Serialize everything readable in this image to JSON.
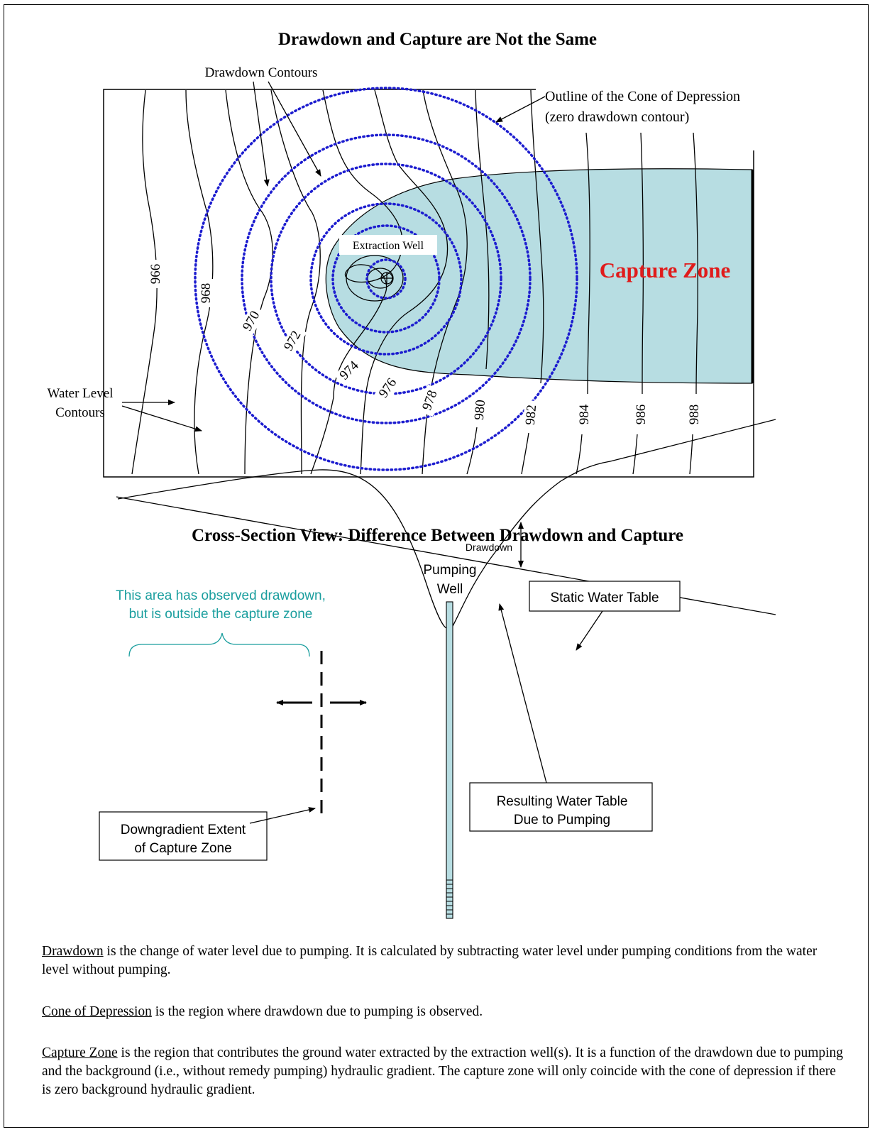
{
  "plan_view": {
    "title": "Drawdown and Capture are Not the Same",
    "labels": {
      "drawdown_contours": "Drawdown Contours",
      "cone_outline_line1": "Outline of the Cone of Depression",
      "cone_outline_line2": "(zero drawdown contour)",
      "extraction_well": "Extraction Well",
      "capture_zone": "Capture Zone",
      "water_level_line1": "Water Level",
      "water_level_line2": "Contours"
    },
    "contour_labels": [
      "966",
      "968",
      "970",
      "972",
      "974",
      "976",
      "978",
      "980",
      "982",
      "984",
      "986",
      "988"
    ]
  },
  "cross_section": {
    "title": "Cross-Section View: Difference Between Drawdown and Capture",
    "labels": {
      "pumping_well_line1": "Pumping",
      "pumping_well_line2": "Well",
      "static_water_table": "Static Water Table",
      "observed_line1": "This area has observed drawdown,",
      "observed_line2": "but is outside the capture zone",
      "drawdown": "Drawdown",
      "resulting_line1": "Resulting Water Table",
      "resulting_line2": "Due to Pumping",
      "downgradient_line1": "Downgradient Extent",
      "downgradient_line2": "of Capture Zone"
    }
  },
  "definitions": [
    {
      "term": "Drawdown",
      "text": " is the change of water level due to pumping.  It is calculated by subtracting water level under pumping conditions from the water level without pumping."
    },
    {
      "term": "Cone of Depression",
      "text": " is the region where drawdown due to pumping is observed."
    },
    {
      "term": "Capture Zone",
      "text": " is the region that contributes the ground water extracted by the extraction well(s).  It is a function of the drawdown due to pumping and the background (i.e., without remedy pumping) hydraulic gradient.  The capture zone will only coincide with the cone of depression if there is zero background hydraulic gradient."
    }
  ],
  "colors": {
    "capture_fill": "#b7dde2",
    "drawdown_dots": "#1c1ccf",
    "capture_label": "#e01b1b",
    "observed_text": "#1a9e9e"
  }
}
